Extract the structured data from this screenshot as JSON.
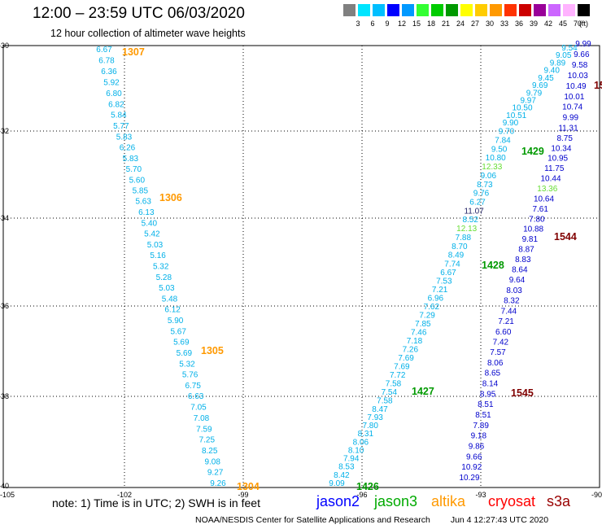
{
  "header": {
    "title": "12:00 – 23:59 UTC 06/03/2020",
    "subtitle": "12 hour collection of altimeter wave heights"
  },
  "legend": {
    "labels": [
      "3",
      "6",
      "9",
      "12",
      "15",
      "18",
      "21",
      "24",
      "27",
      "30",
      "33",
      "36",
      "39",
      "42",
      "45",
      "70"
    ],
    "colors": [
      "#808080",
      "#00e5ff",
      "#00bfff",
      "#0000ff",
      "#0099ff",
      "#33ff33",
      "#00cc00",
      "#009900",
      "#ffff00",
      "#ffcc00",
      "#ff9900",
      "#ff3300",
      "#cc0000",
      "#990099",
      "#cc66ff",
      "#ffb3ff",
      "#000000"
    ],
    "unit": "(ft)"
  },
  "axes": {
    "x_ticks": [
      "-105",
      "-102",
      "-99",
      "-96",
      "-93",
      "-90"
    ],
    "y_ticks": [
      "-30",
      "-32",
      "-34",
      "-36",
      "-38",
      "-40"
    ]
  },
  "tracks": [
    {
      "id": "track-1307-1306-1305-1304",
      "color": "#00b0e8",
      "values": [
        "6.67",
        "6.78",
        "6.36",
        "5.92",
        "6.80",
        "6.82",
        "5.84",
        "5.77",
        "5.83",
        "6.26",
        "5.83",
        "5.70",
        "5.60",
        "5.85",
        "5.63",
        "6.13",
        "5.40",
        "5.42",
        "5.03",
        "5.16",
        "5.32",
        "5.28",
        "5.03",
        "5.48",
        "6.12",
        "5.90",
        "5.67",
        "5.69",
        "5.69",
        "5.32",
        "5.76",
        "6.75",
        "6.63",
        "7.05",
        "7.08",
        "7.59",
        "7.25",
        "8.25",
        "9.08",
        "9.27",
        "9.26"
      ]
    },
    {
      "id": "track-1426-1427-1428",
      "color": "#00b0e8",
      "values": [
        "9.09",
        "8.42",
        "8.53",
        "7.94",
        "8.10",
        "8.06",
        "8.31",
        "7.80",
        "7.93",
        "8.47",
        "7.58",
        "7.54",
        "7.58",
        "7.72",
        "7.69",
        "7.69",
        "7.26",
        "7.18",
        "7.46",
        "7.85",
        "7.29",
        "7.62",
        "6.96",
        "7.21",
        "7.53",
        "6.67",
        "7.74",
        "8.49",
        "8.70",
        "7.88",
        "12.13",
        "8.52",
        "11.07",
        "6.27",
        "9.76",
        "8.73",
        "9.06",
        "12.33",
        "10.80",
        "9.50",
        "7.84",
        "9.70",
        "9.90",
        "10.51",
        "10.50",
        "9.97",
        "9.79",
        "9.69",
        "9.45",
        "9.40",
        "9.89",
        "9.05",
        "9.54"
      ]
    },
    {
      "id": "track-1545-1544",
      "color": "#0000cc",
      "values": [
        "10.29",
        "10.92",
        "9.66",
        "9.86",
        "9.18",
        "7.89",
        "8.51",
        "8.51",
        "8.95",
        "8.14",
        "8.65",
        "8.06",
        "7.57",
        "7.42",
        "6.60",
        "7.21",
        "7.44",
        "8.32",
        "8.03",
        "9.64",
        "8.64",
        "8.83",
        "8.87",
        "9.81",
        "10.88",
        "7.80",
        "7.61",
        "10.64",
        "13.36",
        "10.44",
        "11.75",
        "10.95",
        "10.34",
        "8.75",
        "11.31",
        "9.99",
        "10.74",
        "10.01",
        "10.49",
        "10.03",
        "9.58",
        "9.66",
        "9.99"
      ]
    }
  ],
  "pass_labels": [
    {
      "id": "pass-1307",
      "text": "1307",
      "color": "#ff9900"
    },
    {
      "id": "pass-1306",
      "text": "1306",
      "color": "#ff9900"
    },
    {
      "id": "pass-1305",
      "text": "1305",
      "color": "#ff9900"
    },
    {
      "id": "pass-1304",
      "text": "1304",
      "color": "#ff9900"
    },
    {
      "id": "pass-1426",
      "text": "1426",
      "color": "#009900"
    },
    {
      "id": "pass-1427",
      "text": "1427",
      "color": "#009900"
    },
    {
      "id": "pass-1428",
      "text": "1428",
      "color": "#009900"
    },
    {
      "id": "pass-1429",
      "text": "1429",
      "color": "#009900"
    },
    {
      "id": "pass-1545",
      "text": "1545",
      "color": "#800000"
    },
    {
      "id": "pass-1544",
      "text": "1544",
      "color": "#800000"
    },
    {
      "id": "pass-15",
      "text": "15",
      "color": "#800000"
    }
  ],
  "note": "note: 1) Time is in UTC; 2) SWH is in feet",
  "satellites": [
    {
      "name": "jason2",
      "color": "#0000ff"
    },
    {
      "name": "jason3",
      "color": "#00aa00"
    },
    {
      "name": "altika",
      "color": "#ff9900"
    },
    {
      "name": "cryosat",
      "color": "#ff0000"
    },
    {
      "name": "s3a",
      "color": "#990000"
    }
  ],
  "footer": {
    "credit": "NOAA/NESDIS Center for Satellite Applications and Research",
    "timestamp": "Jun  4 12:27:43 UTC 2020"
  }
}
